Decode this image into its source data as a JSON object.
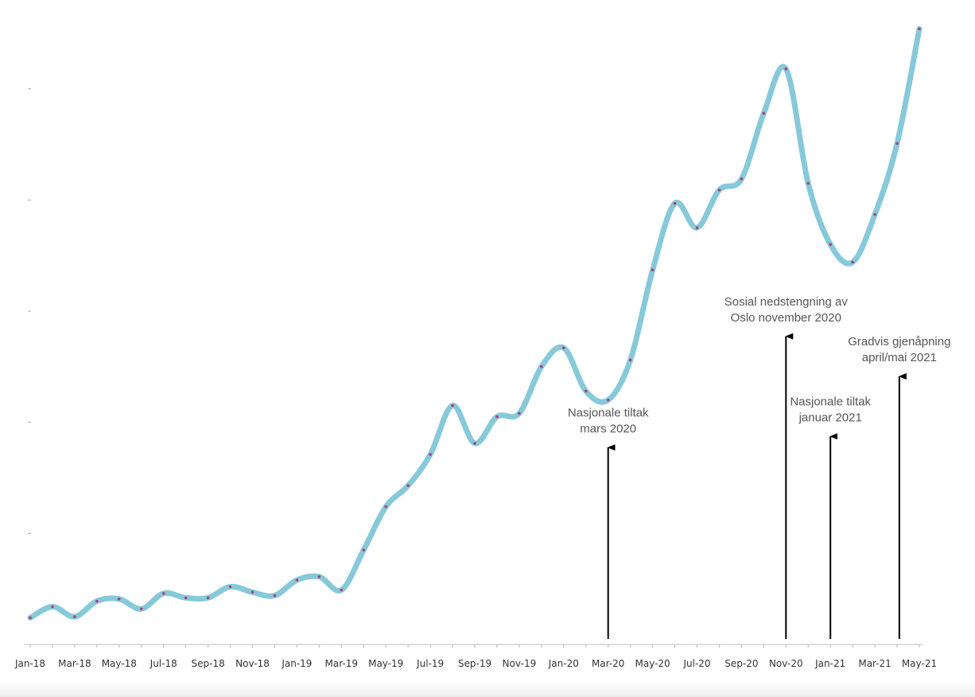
{
  "chart_data": {
    "type": "line",
    "title": "",
    "xlabel": "",
    "ylabel": "",
    "ylim": [
      0,
      5.8
    ],
    "y_ticks": [
      1,
      2,
      3,
      4,
      5
    ],
    "y_tick_labels_shown": false,
    "grid": false,
    "x": [
      "Jan-18",
      "Feb-18",
      "Mar-18",
      "Apr-18",
      "May-18",
      "Jun-18",
      "Jul-18",
      "Aug-18",
      "Sep-18",
      "Oct-18",
      "Nov-18",
      "Dec-18",
      "Jan-19",
      "Feb-19",
      "Mar-19",
      "Apr-19",
      "May-19",
      "Jun-19",
      "Jul-19",
      "Aug-19",
      "Sep-19",
      "Oct-19",
      "Nov-19",
      "Dec-19",
      "Jan-20",
      "Feb-20",
      "Mar-20",
      "Apr-20",
      "May-20",
      "Jun-20",
      "Jul-20",
      "Aug-20",
      "Sep-20",
      "Oct-20",
      "Nov-20",
      "Dec-20",
      "Jan-21",
      "Feb-21",
      "Mar-21",
      "Apr-21",
      "May-21"
    ],
    "x_tick_labels": [
      "Jan-18",
      "Mar-18",
      "May-18",
      "Jul-18",
      "Sep-18",
      "Nov-18",
      "Jan-19",
      "Mar-19",
      "May-19",
      "Jul-19",
      "Sep-19",
      "Nov-19",
      "Jan-20",
      "Mar-20",
      "May-20",
      "Jul-20",
      "Sep-20",
      "Nov-20",
      "Jan-21",
      "Mar-21",
      "May-21"
    ],
    "series": [
      {
        "name": "",
        "color": "#86c9da",
        "marker_color": "#b0407a",
        "values": [
          0.24,
          0.34,
          0.25,
          0.39,
          0.41,
          0.32,
          0.46,
          0.42,
          0.42,
          0.52,
          0.47,
          0.44,
          0.58,
          0.61,
          0.49,
          0.85,
          1.24,
          1.43,
          1.71,
          2.15,
          1.81,
          2.05,
          2.08,
          2.5,
          2.67,
          2.28,
          2.2,
          2.56,
          3.37,
          3.97,
          3.75,
          4.09,
          4.19,
          4.78,
          5.18,
          4.15,
          3.6,
          3.44,
          3.87,
          4.51,
          5.54
        ]
      }
    ],
    "annotations": [
      {
        "month_index": 26,
        "arrow_top": 1.78,
        "lines": [
          "Nasjonale tiltak",
          "mars 2020"
        ]
      },
      {
        "month_index": 34,
        "arrow_top": 2.78,
        "lines": [
          "Sosial nedstengning av",
          "Oslo november 2020"
        ]
      },
      {
        "month_index": 36,
        "arrow_top": 1.88,
        "lines": [
          "Nasjonale tiltak",
          "januar 2021"
        ]
      },
      {
        "month_index": 39.1,
        "arrow_top": 2.42,
        "lines": [
          "Gradvis gjenåpning",
          "april/mai 2021"
        ]
      }
    ]
  }
}
